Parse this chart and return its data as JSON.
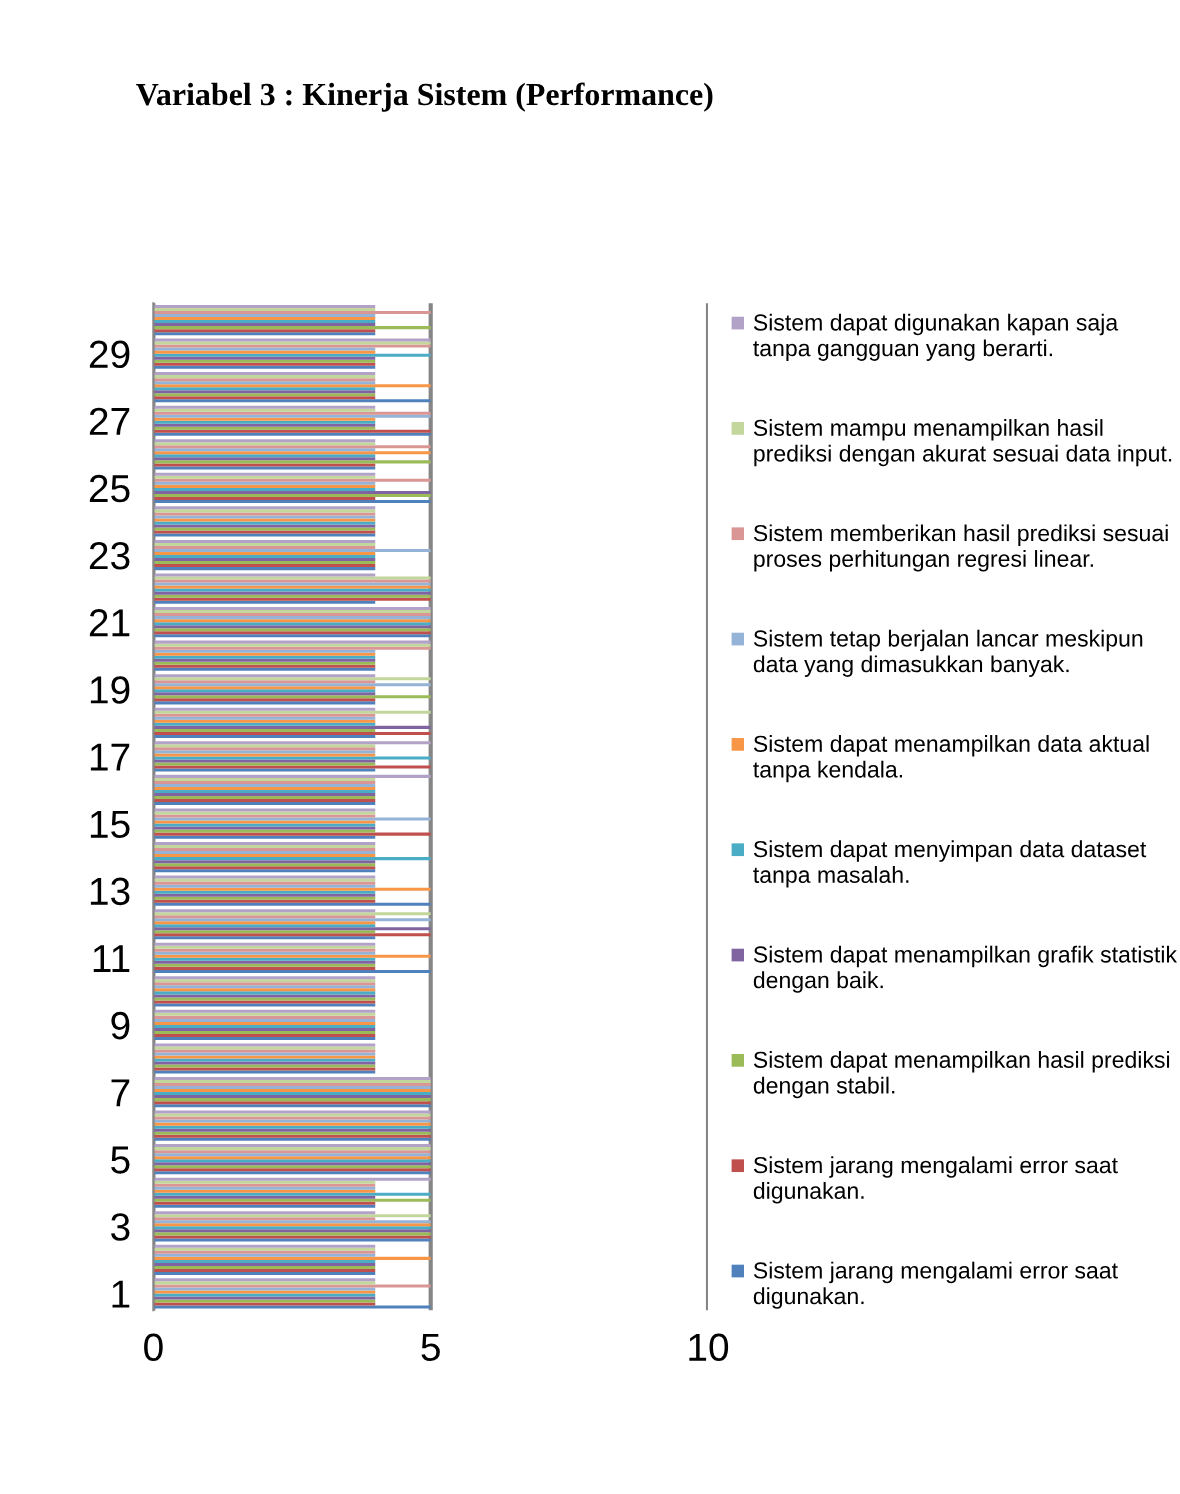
{
  "chart_data": {
    "type": "bar",
    "orientation": "horizontal",
    "title": "Variabel 3 : Kinerja Sistem (Performance)",
    "categories": [
      null,
      "29",
      null,
      "27",
      null,
      "25",
      null,
      "23",
      null,
      "21",
      null,
      "19",
      null,
      "17",
      null,
      "15",
      null,
      "13",
      null,
      "11",
      null,
      "9",
      null,
      "7",
      null,
      "5",
      null,
      "3",
      null,
      "1"
    ],
    "series": [
      {
        "name": "Sistem jarang mengalami error saat digunakan.",
        "color": "#4f81bd",
        "values": [
          4,
          4,
          5,
          5,
          4,
          5,
          4,
          4,
          4,
          5,
          4,
          4,
          4,
          4,
          4,
          4,
          4,
          5,
          4,
          5,
          4,
          4,
          4,
          5,
          5,
          5,
          4,
          5,
          4,
          5
        ]
      },
      {
        "name": "Sistem jarang mengalami error saat digunakan.",
        "color": "#c0504d",
        "values": [
          4,
          4,
          4,
          5,
          4,
          4,
          4,
          4,
          5,
          5,
          4,
          4,
          5,
          5,
          4,
          5,
          4,
          4,
          5,
          4,
          4,
          4,
          4,
          5,
          5,
          5,
          4,
          5,
          4,
          4
        ]
      },
      {
        "name": "Sistem dapat menampilkan hasil prediksi dengan stabil.",
        "color": "#9bbb59",
        "values": [
          5,
          4,
          4,
          4,
          5,
          5,
          4,
          4,
          5,
          5,
          4,
          5,
          4,
          4,
          4,
          4,
          4,
          4,
          4,
          4,
          4,
          4,
          4,
          5,
          5,
          5,
          5,
          5,
          4,
          4
        ]
      },
      {
        "name": "Sistem dapat menampilkan grafik statistik dengan baik.",
        "color": "#8064a2",
        "values": [
          4,
          4,
          4,
          4,
          4,
          5,
          4,
          4,
          5,
          5,
          4,
          4,
          5,
          4,
          4,
          4,
          4,
          4,
          5,
          4,
          4,
          4,
          4,
          5,
          5,
          5,
          4,
          5,
          4,
          4
        ]
      },
      {
        "name": "Sistem dapat menyimpan data dataset tanpa masalah.",
        "color": "#4bacc6",
        "values": [
          4,
          5,
          4,
          4,
          4,
          4,
          4,
          4,
          5,
          5,
          4,
          4,
          4,
          5,
          4,
          4,
          5,
          4,
          4,
          4,
          4,
          4,
          4,
          5,
          5,
          5,
          5,
          5,
          4,
          4
        ]
      },
      {
        "name": "Sistem dapat menampilkan data aktual tanpa kendala.",
        "color": "#f79646",
        "values": [
          4,
          4,
          5,
          4,
          5,
          4,
          4,
          4,
          5,
          5,
          4,
          4,
          4,
          4,
          4,
          4,
          4,
          5,
          4,
          5,
          4,
          4,
          4,
          5,
          5,
          5,
          4,
          5,
          5,
          4
        ]
      },
      {
        "name": "Sistem tetap berjalan lancar meskipun data yang dimasukkan banyak.",
        "color": "#95b3d7",
        "values": [
          4,
          4,
          4,
          5,
          4,
          4,
          4,
          5,
          5,
          5,
          4,
          5,
          4,
          4,
          4,
          5,
          4,
          4,
          5,
          4,
          4,
          4,
          4,
          5,
          5,
          5,
          4,
          5,
          4,
          4
        ]
      },
      {
        "name": "Sistem memberikan hasil prediksi sesuai proses perhitungan regresi linear.",
        "color": "#d99694",
        "values": [
          5,
          5,
          4,
          5,
          5,
          5,
          4,
          4,
          5,
          5,
          5,
          4,
          4,
          4,
          4,
          4,
          4,
          4,
          4,
          4,
          4,
          4,
          4,
          5,
          5,
          5,
          4,
          4,
          4,
          5
        ]
      },
      {
        "name": "Sistem mampu menampilkan hasil prediksi dengan akurat sesuai data input.",
        "color": "#c3d69b",
        "values": [
          4,
          5,
          4,
          4,
          4,
          4,
          4,
          4,
          5,
          5,
          5,
          5,
          5,
          4,
          4,
          4,
          4,
          4,
          5,
          4,
          4,
          4,
          4,
          5,
          5,
          5,
          4,
          5,
          4,
          4
        ]
      },
      {
        "name": "Sistem dapat digunakan kapan saja tanpa gangguan yang berarti.",
        "color": "#b3a2c7",
        "values": [
          4,
          5,
          4,
          4,
          4,
          4,
          4,
          4,
          4,
          5,
          5,
          4,
          4,
          5,
          5,
          4,
          4,
          4,
          4,
          4,
          4,
          4,
          4,
          5,
          5,
          5,
          5,
          4,
          4,
          4
        ]
      }
    ],
    "xlim": [
      0,
      10
    ],
    "xticks": [
      0,
      5,
      10
    ],
    "grid": "x",
    "legend": "right"
  }
}
